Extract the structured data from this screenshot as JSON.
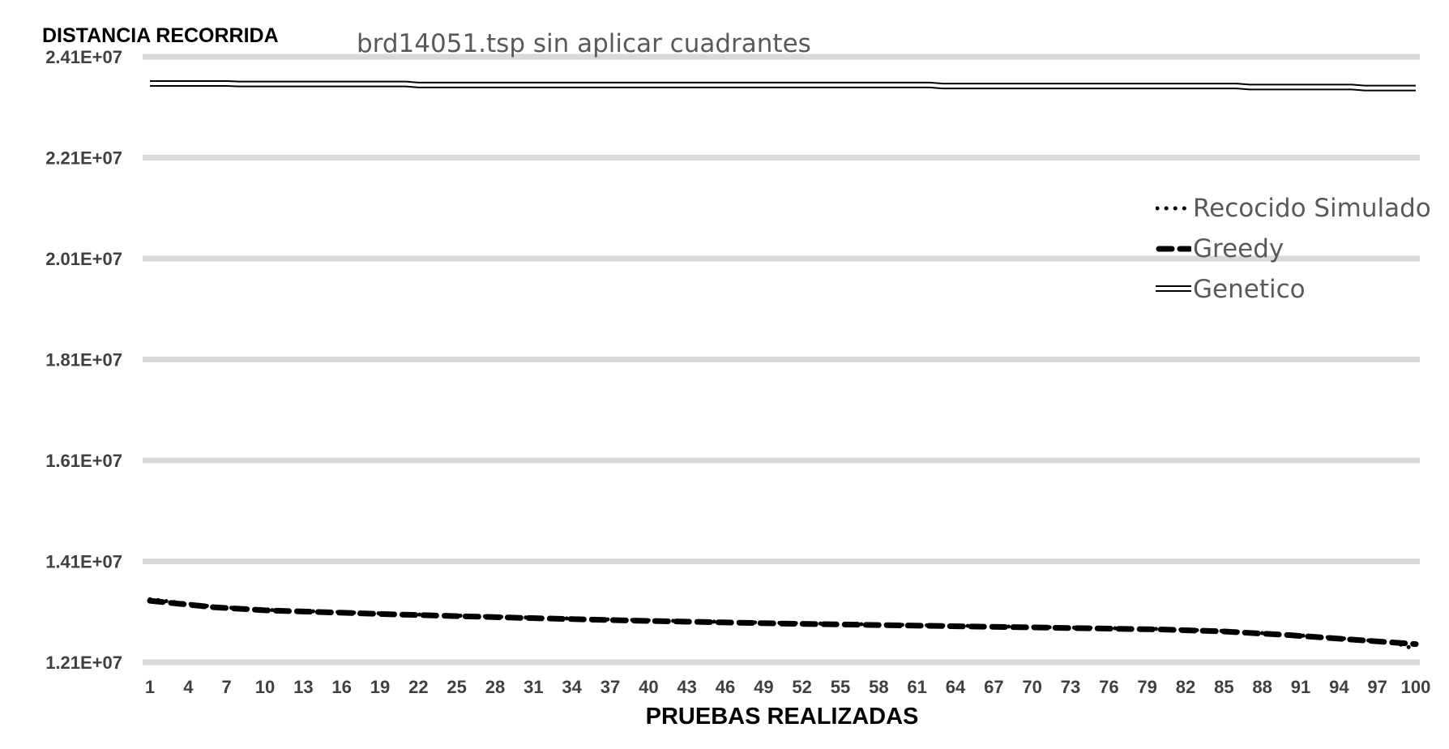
{
  "chart_data": {
    "type": "line",
    "title": "brd14051.tsp sin aplicar cuadrantes",
    "xlabel": "PRUEBAS REALIZADAS",
    "ylabel": "DISTANCIA RECORRIDA",
    "ylim": [
      12100000,
      24100000
    ],
    "yticks": [
      "1.21E+07",
      "1.41E+07",
      "1.61E+07",
      "1.81E+07",
      "2.01E+07",
      "2.21E+07",
      "2.41E+07"
    ],
    "ytick_values": [
      12100000,
      14100000,
      16100000,
      18100000,
      20100000,
      22100000,
      24100000
    ],
    "x_range": [
      1,
      100
    ],
    "xtick_labels": [
      "1",
      "4",
      "7",
      "10",
      "13",
      "16",
      "19",
      "22",
      "25",
      "28",
      "31",
      "34",
      "37",
      "40",
      "43",
      "46",
      "49",
      "52",
      "55",
      "58",
      "61",
      "64",
      "67",
      "70",
      "73",
      "76",
      "79",
      "82",
      "85",
      "88",
      "91",
      "94",
      "97",
      "100"
    ],
    "grid": true,
    "legend_position": "right",
    "series": [
      {
        "name": "Recocido Simulado",
        "style": "dotted",
        "points": [
          [
            1,
            13350000
          ],
          [
            6,
            13200000
          ],
          [
            10,
            13140000
          ],
          [
            20,
            13060000
          ],
          [
            30,
            12990000
          ],
          [
            40,
            12930000
          ],
          [
            50,
            12880000
          ],
          [
            60,
            12840000
          ],
          [
            70,
            12800000
          ],
          [
            80,
            12760000
          ],
          [
            85,
            12720000
          ],
          [
            90,
            12650000
          ],
          [
            95,
            12560000
          ],
          [
            98,
            12500000
          ],
          [
            99,
            12440000
          ],
          [
            100,
            12350000
          ]
        ]
      },
      {
        "name": "Greedy",
        "style": "dashed",
        "points": [
          [
            1,
            13320000
          ],
          [
            6,
            13190000
          ],
          [
            10,
            13130000
          ],
          [
            20,
            13050000
          ],
          [
            30,
            12980000
          ],
          [
            40,
            12920000
          ],
          [
            50,
            12870000
          ],
          [
            60,
            12830000
          ],
          [
            70,
            12790000
          ],
          [
            80,
            12750000
          ],
          [
            85,
            12710000
          ],
          [
            90,
            12640000
          ],
          [
            95,
            12550000
          ],
          [
            100,
            12460000
          ]
        ]
      },
      {
        "name": "Genetico",
        "style": "double",
        "points": [
          [
            1,
            23570000
          ],
          [
            7,
            23570000
          ],
          [
            8,
            23560000
          ],
          [
            21,
            23560000
          ],
          [
            22,
            23540000
          ],
          [
            62,
            23540000
          ],
          [
            63,
            23520000
          ],
          [
            86,
            23520000
          ],
          [
            87,
            23500000
          ],
          [
            95,
            23500000
          ],
          [
            96,
            23480000
          ],
          [
            100,
            23480000
          ]
        ]
      }
    ]
  }
}
